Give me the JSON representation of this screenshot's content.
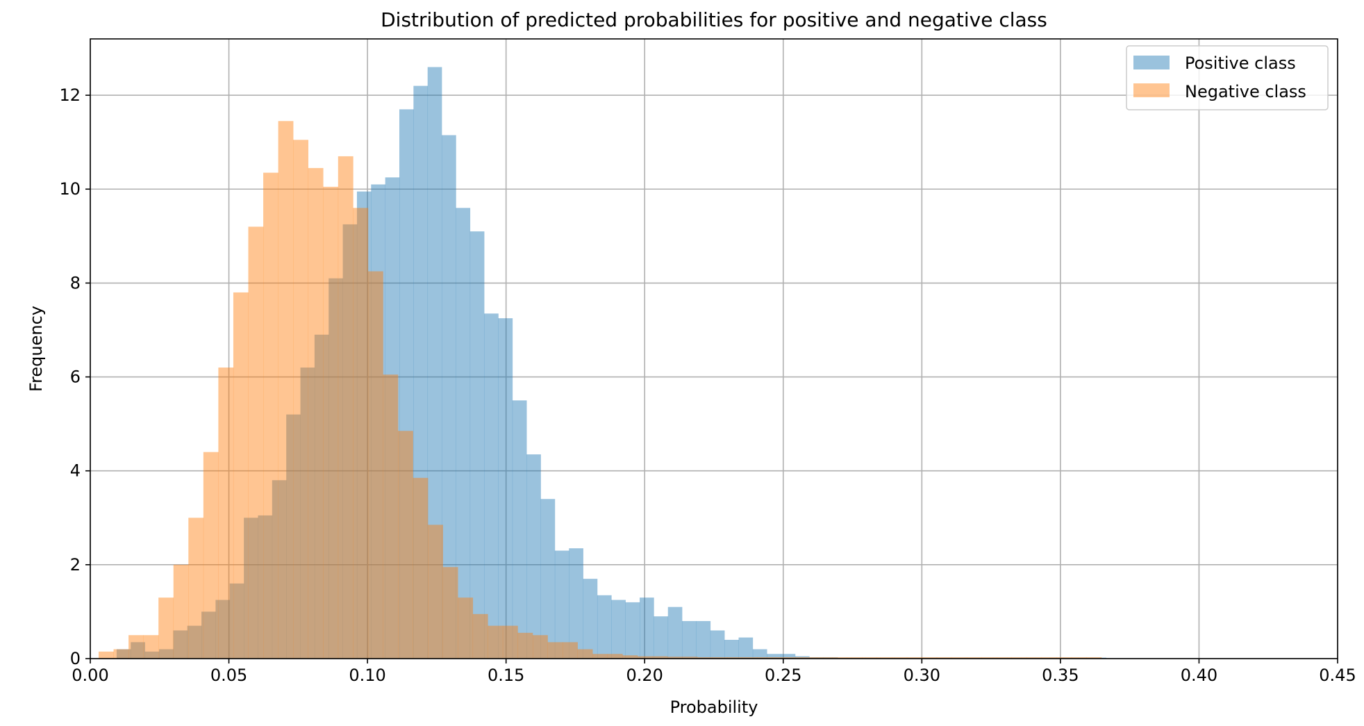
{
  "chart_data": {
    "type": "histogram",
    "title": "Distribution of predicted probabilities for positive and negative class",
    "xlabel": "Probability",
    "ylabel": "Frequency",
    "xlim": [
      0.0,
      0.45
    ],
    "ylim": [
      0,
      13.2
    ],
    "xticks": [
      0.0,
      0.05,
      0.1,
      0.15,
      0.2,
      0.25,
      0.3,
      0.35,
      0.4,
      0.45
    ],
    "xtick_labels": [
      "0.00",
      "0.05",
      "0.10",
      "0.15",
      "0.20",
      "0.25",
      "0.30",
      "0.35",
      "0.40",
      "0.45"
    ],
    "yticks": [
      0,
      2,
      4,
      6,
      8,
      10,
      12
    ],
    "ytick_labels": [
      "0",
      "2",
      "4",
      "6",
      "8",
      "10",
      "12"
    ],
    "grid": true,
    "legend_position": "top-right",
    "series": [
      {
        "name": "Positive class",
        "color": "#1f77b4",
        "opacity": 0.45,
        "bin_edges": [
          0.0095,
          0.0146,
          0.0197,
          0.0248,
          0.0299,
          0.035,
          0.0401,
          0.0452,
          0.0503,
          0.0554,
          0.0605,
          0.0656,
          0.0707,
          0.0758,
          0.0809,
          0.086,
          0.0911,
          0.0962,
          0.1013,
          0.1064,
          0.1115,
          0.1166,
          0.1217,
          0.1268,
          0.1319,
          0.137,
          0.1421,
          0.1472,
          0.1523,
          0.1574,
          0.1625,
          0.1676,
          0.1727,
          0.1778,
          0.1829,
          0.188,
          0.1931,
          0.1982,
          0.2033,
          0.2084,
          0.2135,
          0.2186,
          0.2237,
          0.2288,
          0.2339,
          0.239,
          0.2441,
          0.2492,
          0.2543,
          0.2594,
          0.2645,
          0.2696,
          0.2747,
          0.2798,
          0.2849,
          0.29,
          0.2951,
          0.3002,
          0.3053,
          0.3104,
          0.3155,
          0.3206,
          0.3257,
          0.3308,
          0.3359,
          0.341,
          0.3461,
          0.3512,
          0.3563,
          0.3614,
          0.3665
        ],
        "values": [
          0.2,
          0.35,
          0.15,
          0.2,
          0.6,
          0.7,
          1.0,
          1.25,
          1.6,
          3.0,
          3.05,
          3.8,
          5.2,
          6.2,
          6.9,
          8.1,
          9.25,
          9.95,
          10.1,
          10.25,
          11.7,
          12.2,
          12.6,
          11.15,
          9.6,
          9.1,
          7.35,
          7.25,
          5.5,
          4.35,
          3.4,
          2.3,
          2.35,
          1.7,
          1.35,
          1.25,
          1.2,
          1.3,
          0.9,
          1.1,
          0.8,
          0.8,
          0.6,
          0.4,
          0.45,
          0.2,
          0.1,
          0.1,
          0.05,
          0.03,
          0.03,
          0.02,
          0.02,
          0.02,
          0.02,
          0.02,
          0.02,
          0.02,
          0.02,
          0.02,
          0.02,
          0.02,
          0.02,
          0.02,
          0.02,
          0.02,
          0.02,
          0.02,
          0.02,
          0.02
        ]
      },
      {
        "name": "Negative class",
        "color": "#ff7f0e",
        "opacity": 0.45,
        "bin_edges": [
          0.003,
          0.0084,
          0.0138,
          0.0192,
          0.0246,
          0.03,
          0.0354,
          0.0408,
          0.0462,
          0.0516,
          0.057,
          0.0624,
          0.0678,
          0.0732,
          0.0786,
          0.084,
          0.0894,
          0.0948,
          0.1002,
          0.1056,
          0.111,
          0.1164,
          0.1218,
          0.1272,
          0.1326,
          0.138,
          0.1434,
          0.1488,
          0.1542,
          0.1596,
          0.165,
          0.1704,
          0.1758,
          0.1812,
          0.1866,
          0.192,
          0.1974,
          0.2028,
          0.2082,
          0.2136,
          0.219,
          0.2244,
          0.2298,
          0.2352,
          0.2406,
          0.246,
          0.2514,
          0.2568,
          0.2622,
          0.2676,
          0.273,
          0.2784,
          0.2838,
          0.2892,
          0.2946,
          0.3,
          0.3054,
          0.3108,
          0.3162,
          0.3216,
          0.327,
          0.3324,
          0.3378,
          0.3432,
          0.3486,
          0.354,
          0.3594,
          0.3648
        ],
        "values": [
          0.15,
          0.2,
          0.5,
          0.5,
          1.3,
          2.0,
          3.0,
          4.4,
          6.2,
          7.8,
          9.2,
          10.35,
          11.45,
          11.05,
          10.45,
          10.05,
          10.7,
          9.6,
          8.25,
          6.05,
          4.85,
          3.85,
          2.85,
          1.95,
          1.3,
          0.95,
          0.7,
          0.7,
          0.55,
          0.5,
          0.35,
          0.35,
          0.2,
          0.1,
          0.1,
          0.07,
          0.05,
          0.05,
          0.04,
          0.04,
          0.03,
          0.03,
          0.03,
          0.03,
          0.03,
          0.03,
          0.03,
          0.03,
          0.03,
          0.03,
          0.03,
          0.03,
          0.03,
          0.03,
          0.03,
          0.03,
          0.03,
          0.03,
          0.03,
          0.03,
          0.03,
          0.03,
          0.03,
          0.03,
          0.03,
          0.03,
          0.03
        ]
      }
    ]
  }
}
